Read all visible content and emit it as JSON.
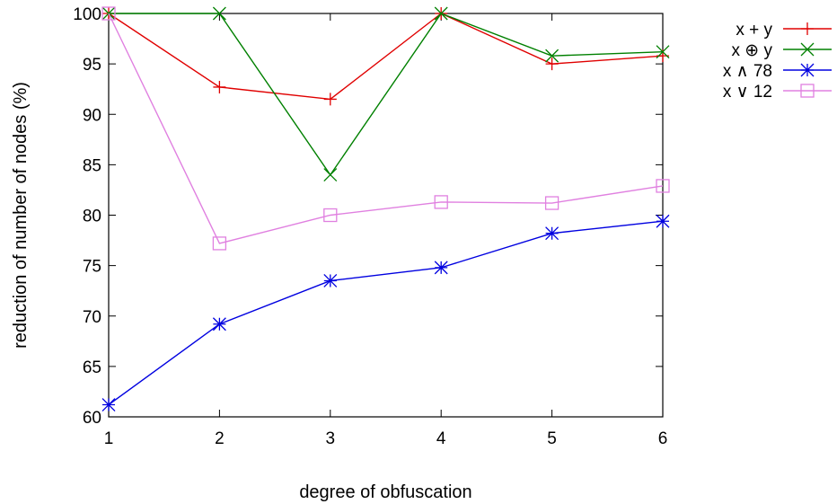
{
  "chart_data": {
    "type": "line",
    "title": "",
    "xlabel": "degree of obfuscation",
    "ylabel": "reduction of number of nodes (%)",
    "xlim": [
      1,
      6
    ],
    "ylim": [
      60,
      100
    ],
    "x_ticks": [
      "1",
      "2",
      "3",
      "4",
      "5",
      "6"
    ],
    "y_ticks": [
      "60",
      "65",
      "70",
      "75",
      "80",
      "85",
      "90",
      "95",
      "100"
    ],
    "grid": false,
    "legend_position": "outside-top-right",
    "x": [
      1,
      2,
      3,
      4,
      5,
      6
    ],
    "series": [
      {
        "name": "x + y",
        "color": "#e00000",
        "marker": "plus",
        "values": [
          100,
          92.7,
          91.5,
          100,
          95.0,
          95.8
        ]
      },
      {
        "name": "x ⊕ y",
        "color": "#008000",
        "marker": "cross",
        "values": [
          100,
          100,
          84.0,
          100,
          95.8,
          96.2
        ]
      },
      {
        "name": "x ∧ 78",
        "color": "#0000e0",
        "marker": "star",
        "values": [
          61.2,
          69.2,
          73.5,
          74.8,
          78.2,
          79.4
        ]
      },
      {
        "name": "x ∨ 12",
        "color": "#e080e0",
        "marker": "square",
        "values": [
          100,
          77.2,
          80.0,
          81.3,
          81.2,
          82.9
        ]
      }
    ]
  }
}
